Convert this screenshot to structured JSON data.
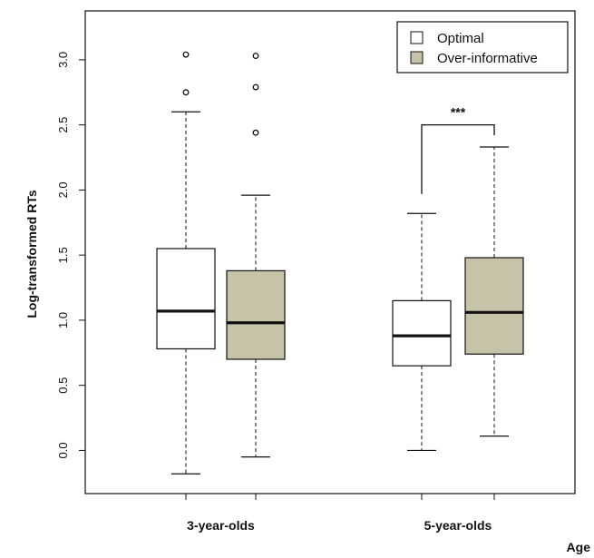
{
  "chart_data": {
    "type": "boxplot",
    "ylabel": "Log-transformed RTs",
    "xlabel": "Age",
    "ylim": [
      -0.3,
      3.35
    ],
    "yticks": [
      0.0,
      0.5,
      1.0,
      1.5,
      2.0,
      2.5,
      3.0
    ],
    "ytick_labels": [
      "0.0",
      "0.5",
      "1.0",
      "1.5",
      "2.0",
      "2.5",
      "3.0"
    ],
    "categories": [
      "3-year-olds",
      "5-year-olds"
    ],
    "legend_position": "top-right",
    "grid": false,
    "series": [
      {
        "name": "Optimal",
        "color": "#ffffff",
        "boxes": [
          {
            "category": "3-year-olds",
            "whisker_low": -0.18,
            "q1": 0.78,
            "median": 1.07,
            "q3": 1.55,
            "whisker_high": 2.6,
            "outliers": [
              2.75,
              3.04
            ]
          },
          {
            "category": "5-year-olds",
            "whisker_low": 0.0,
            "q1": 0.65,
            "median": 0.88,
            "q3": 1.15,
            "whisker_high": 1.82,
            "outliers": []
          }
        ]
      },
      {
        "name": "Over-informative",
        "color": "#c6c3a8",
        "boxes": [
          {
            "category": "3-year-olds",
            "whisker_low": -0.05,
            "q1": 0.7,
            "median": 0.98,
            "q3": 1.38,
            "whisker_high": 1.96,
            "outliers": [
              2.44,
              2.79,
              3.03
            ]
          },
          {
            "category": "5-year-olds",
            "whisker_low": 0.11,
            "q1": 0.74,
            "median": 1.06,
            "q3": 1.48,
            "whisker_high": 2.33,
            "outliers": []
          }
        ]
      }
    ],
    "annotations": [
      {
        "text": "***",
        "category": "5-year-olds",
        "y": 2.5
      }
    ]
  }
}
